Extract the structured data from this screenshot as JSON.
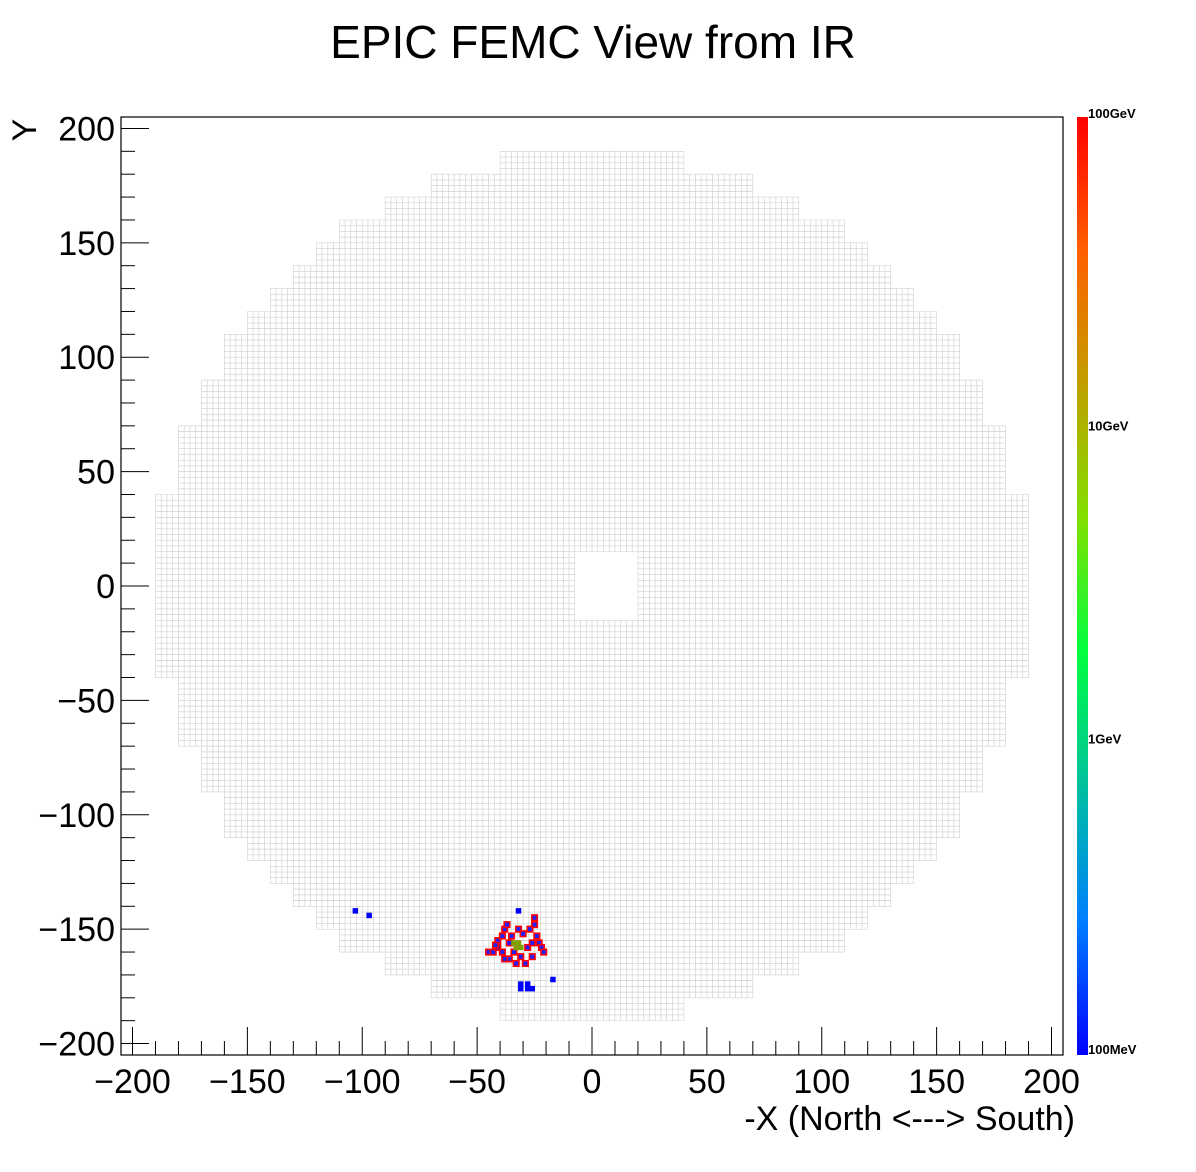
{
  "chart_data": {
    "type": "heatmap",
    "title": "EPIC FEMC View from IR",
    "xlabel": "-X (North <---> South)",
    "ylabel": "Y",
    "xlim": [
      -205,
      205
    ],
    "ylim": [
      -205,
      205
    ],
    "x_ticks": [
      -200,
      -150,
      -100,
      -50,
      0,
      50,
      100,
      150,
      200
    ],
    "y_ticks": [
      200,
      150,
      100,
      50,
      0,
      -50,
      -100,
      -150,
      -200
    ],
    "x_tick_labels": [
      "−200",
      "−150",
      "−100",
      "−50",
      "0",
      "50",
      "100",
      "150",
      "200"
    ],
    "y_tick_labels": [
      "200",
      "150",
      "100",
      "50",
      "0",
      "−50",
      "−100",
      "−150",
      "−200"
    ],
    "detector": {
      "cell_size": 2.5,
      "outline_radius": 195,
      "beam_hole": {
        "x": [
          -8,
          20
        ],
        "y": [
          -15,
          15
        ]
      },
      "cell_color": "#d0d0d0"
    },
    "palette": {
      "scale": "log",
      "labels": [
        "100GeV",
        "10GeV",
        "1GeV",
        "100MeV"
      ],
      "label_values_gev": [
        100,
        10,
        1,
        0.1
      ],
      "colors": [
        "#0000ff",
        "#0080ff",
        "#00c0a0",
        "#00ff40",
        "#80e000",
        "#c0a000",
        "#ff6000",
        "#ff0000"
      ]
    },
    "hits_blue": [
      [
        -103,
        -142
      ],
      [
        -97,
        -144
      ],
      [
        -32,
        -142
      ],
      [
        -17,
        -172
      ],
      [
        -31,
        -174
      ],
      [
        -28,
        -174
      ],
      [
        -31,
        -176
      ],
      [
        -28,
        -176
      ],
      [
        -26,
        -176
      ]
    ],
    "hits_red": [
      [
        -45,
        -160
      ],
      [
        -43,
        -160
      ],
      [
        -41,
        -158
      ],
      [
        -41,
        -155
      ],
      [
        -39,
        -153
      ],
      [
        -39,
        -160
      ],
      [
        -38,
        -150
      ],
      [
        -37,
        -148
      ],
      [
        -36,
        -156
      ],
      [
        -36,
        -163
      ],
      [
        -35,
        -153
      ],
      [
        -34,
        -160
      ],
      [
        -33,
        -165
      ],
      [
        -32,
        -150
      ],
      [
        -31,
        -162
      ],
      [
        -30,
        -152
      ],
      [
        -29,
        -165
      ],
      [
        -28,
        -158
      ],
      [
        -27,
        -150
      ],
      [
        -26,
        -156
      ],
      [
        -26,
        -162
      ],
      [
        -25,
        -145
      ],
      [
        -25,
        -148
      ],
      [
        -24,
        -153
      ],
      [
        -23,
        -156
      ],
      [
        -22,
        -158
      ],
      [
        -21,
        -160
      ],
      [
        -38,
        -163
      ],
      [
        -42,
        -157
      ]
    ],
    "hits_green": [
      [
        -34,
        -156
      ],
      [
        -32,
        -156
      ],
      [
        -31,
        -158
      ],
      [
        -33,
        -158
      ]
    ]
  }
}
